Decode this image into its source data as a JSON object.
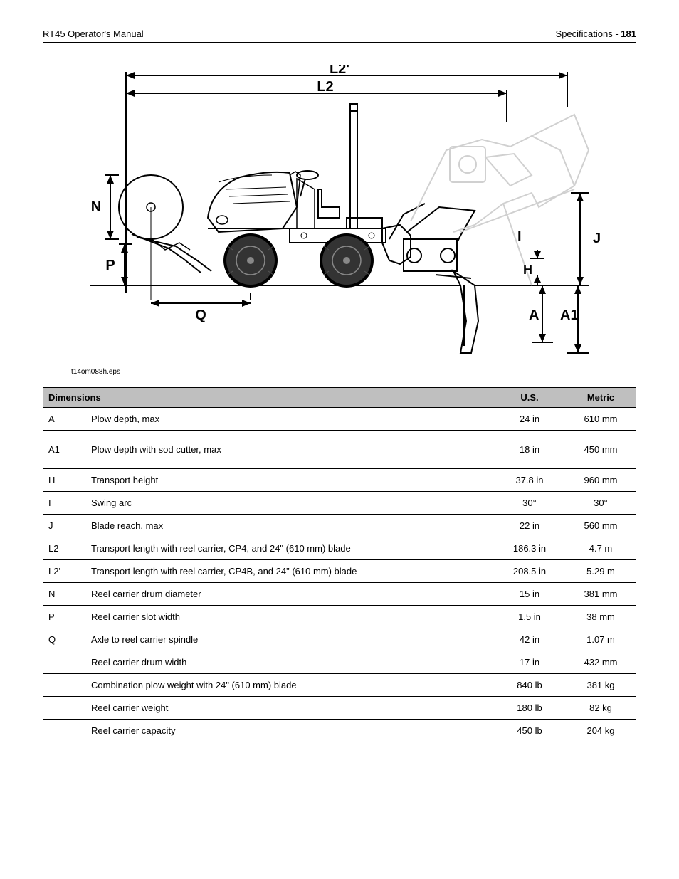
{
  "header": {
    "left": "RT45 Operator's Manual",
    "right_title": "Specifications - ",
    "right_page": "181"
  },
  "diagram": {
    "caption": "t14om088h.eps",
    "labels": {
      "L2p": "L2'",
      "L2": "L2",
      "N": "N",
      "P": "P",
      "Q": "Q",
      "I": "I",
      "H": "H",
      "J": "J",
      "A": "A",
      "A1": "A1"
    },
    "colors": {
      "ghost": "#d0d0d0",
      "line": "#000000",
      "bg": "#ffffff"
    }
  },
  "table": {
    "headers": {
      "dim": "Dimensions",
      "us": "U.S.",
      "metric": "Metric"
    },
    "rows": [
      {
        "ref": "A",
        "desc": "Plow depth, max",
        "us": "24 in",
        "metric": "610 mm"
      },
      {
        "ref": "A1",
        "desc": "Plow depth with sod cutter, max",
        "us": "18 in",
        "metric": "450 mm",
        "tall": true
      },
      {
        "ref": "H",
        "desc": "Transport height",
        "us": "37.8 in",
        "metric": "960 mm"
      },
      {
        "ref": "I",
        "desc": "Swing arc",
        "us": "30°",
        "metric": "30°"
      },
      {
        "ref": "J",
        "desc": "Blade reach, max",
        "us": "22 in",
        "metric": "560 mm"
      },
      {
        "ref": "L2",
        "desc": "Transport length with reel carrier, CP4, and 24\" (610 mm) blade",
        "us": "186.3 in",
        "metric": "4.7 m"
      },
      {
        "ref": "L2'",
        "desc": "Transport length with reel carrier, CP4B, and 24\" (610 mm) blade",
        "us": "208.5 in",
        "metric": "5.29 m"
      },
      {
        "ref": "N",
        "desc": "Reel carrier drum diameter",
        "us": "15 in",
        "metric": "381 mm"
      },
      {
        "ref": "P",
        "desc": "Reel carrier slot width",
        "us": "1.5 in",
        "metric": "38 mm"
      },
      {
        "ref": "Q",
        "desc": "Axle to reel carrier spindle",
        "us": "42 in",
        "metric": "1.07 m"
      },
      {
        "ref": "",
        "desc": "Reel carrier drum width",
        "us": "17 in",
        "metric": "432 mm"
      },
      {
        "ref": "",
        "desc": "Combination plow weight with 24\" (610 mm) blade",
        "us": "840 lb",
        "metric": "381 kg"
      },
      {
        "ref": "",
        "desc": "Reel carrier weight",
        "us": "180 lb",
        "metric": "82 kg"
      },
      {
        "ref": "",
        "desc": "Reel carrier capacity",
        "us": "450 lb",
        "metric": "204 kg"
      }
    ]
  }
}
